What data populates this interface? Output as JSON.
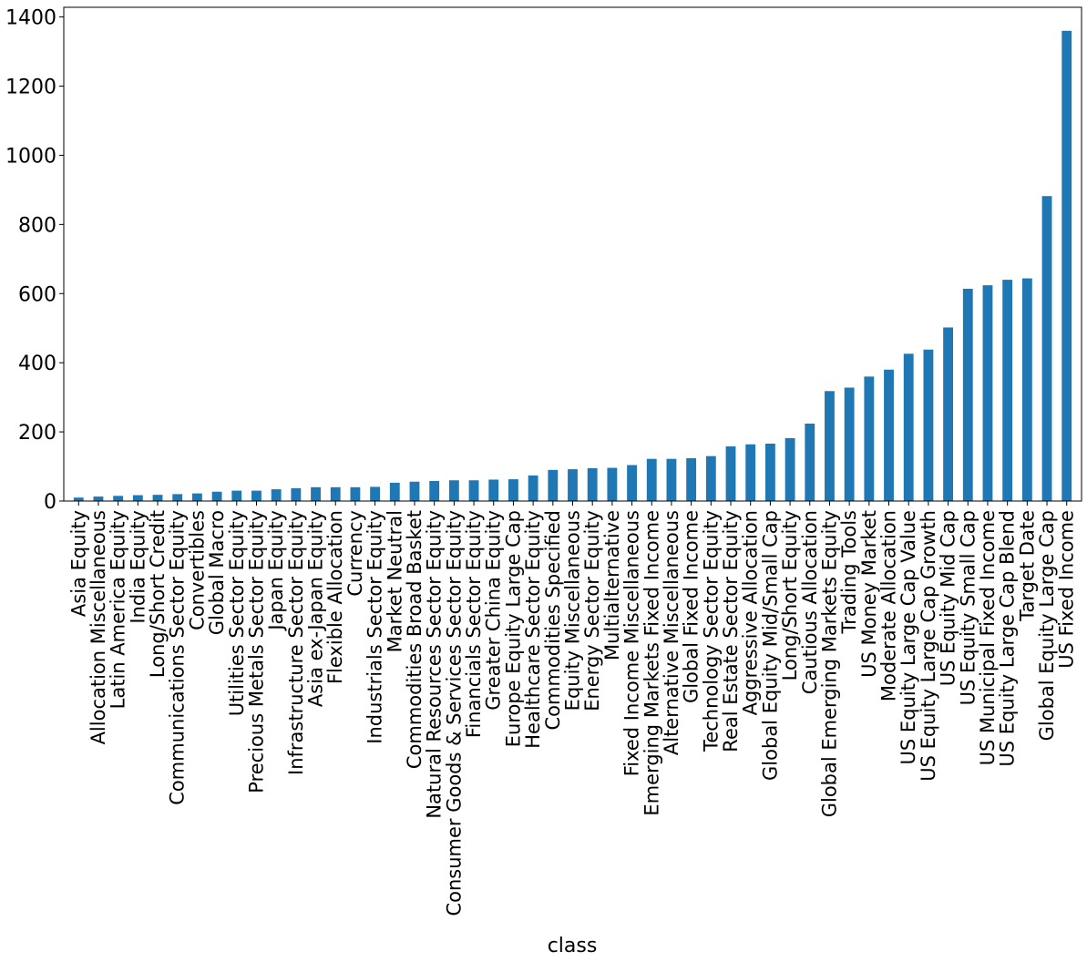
{
  "chart_data": {
    "type": "bar",
    "title": "",
    "xlabel": "class",
    "ylabel": "",
    "ylim": [
      0,
      1428
    ],
    "yticks": [
      0,
      200,
      400,
      600,
      800,
      1000,
      1200,
      1400
    ],
    "grid": false,
    "legend": "none",
    "bar_color": "#1f77b4",
    "categories": [
      "Asia Equity",
      "Allocation Miscellaneous",
      "Latin America Equity",
      "India Equity",
      "Long/Short Credit",
      "Communications Sector Equity",
      "Convertibles",
      "Global Macro",
      "Utilities Sector Equity",
      "Precious Metals Sector Equity",
      "Japan Equity",
      "Infrastructure Sector Equity",
      "Asia ex-Japan Equity",
      "Flexible Allocation",
      "Currency",
      "Industrials Sector Equity",
      "Market Neutral",
      "Commodities Broad Basket",
      "Natural Resources Sector Equity",
      "Consumer Goods & Services Sector Equity",
      "Financials Sector Equity",
      "Greater China Equity",
      "Europe Equity Large Cap",
      "Healthcare Sector Equity",
      "Commodities Specified",
      "Equity Miscellaneous",
      "Energy Sector Equity",
      "Multialternative",
      "Fixed Income Miscellaneous",
      "Emerging Markets Fixed Income",
      "Alternative Miscellaneous",
      "Global Fixed Income",
      "Technology Sector Equity",
      "Real Estate Sector Equity",
      "Aggressive Allocation",
      "Global Equity Mid/Small Cap",
      "Long/Short Equity",
      "Cautious Allocation",
      "Global Emerging Markets Equity",
      "Trading Tools",
      "US Money Market",
      "Moderate Allocation",
      "US Equity Large Cap Value",
      "US Equity Large Cap Growth",
      "US Equity Mid Cap",
      "US Equity Small Cap",
      "US Municipal Fixed Income",
      "US Equity Large Cap Blend",
      "Target Date",
      "Global Equity Large Cap",
      "US Fixed Income"
    ],
    "values": [
      10,
      13,
      15,
      17,
      18,
      20,
      22,
      27,
      30,
      30,
      34,
      37,
      40,
      40,
      40,
      41,
      53,
      56,
      58,
      60,
      60,
      62,
      63,
      74,
      90,
      92,
      95,
      96,
      104,
      122,
      122,
      124,
      130,
      158,
      164,
      166,
      182,
      224,
      318,
      328,
      360,
      380,
      426,
      438,
      502,
      614,
      624,
      640,
      644,
      882,
      1360
    ]
  }
}
